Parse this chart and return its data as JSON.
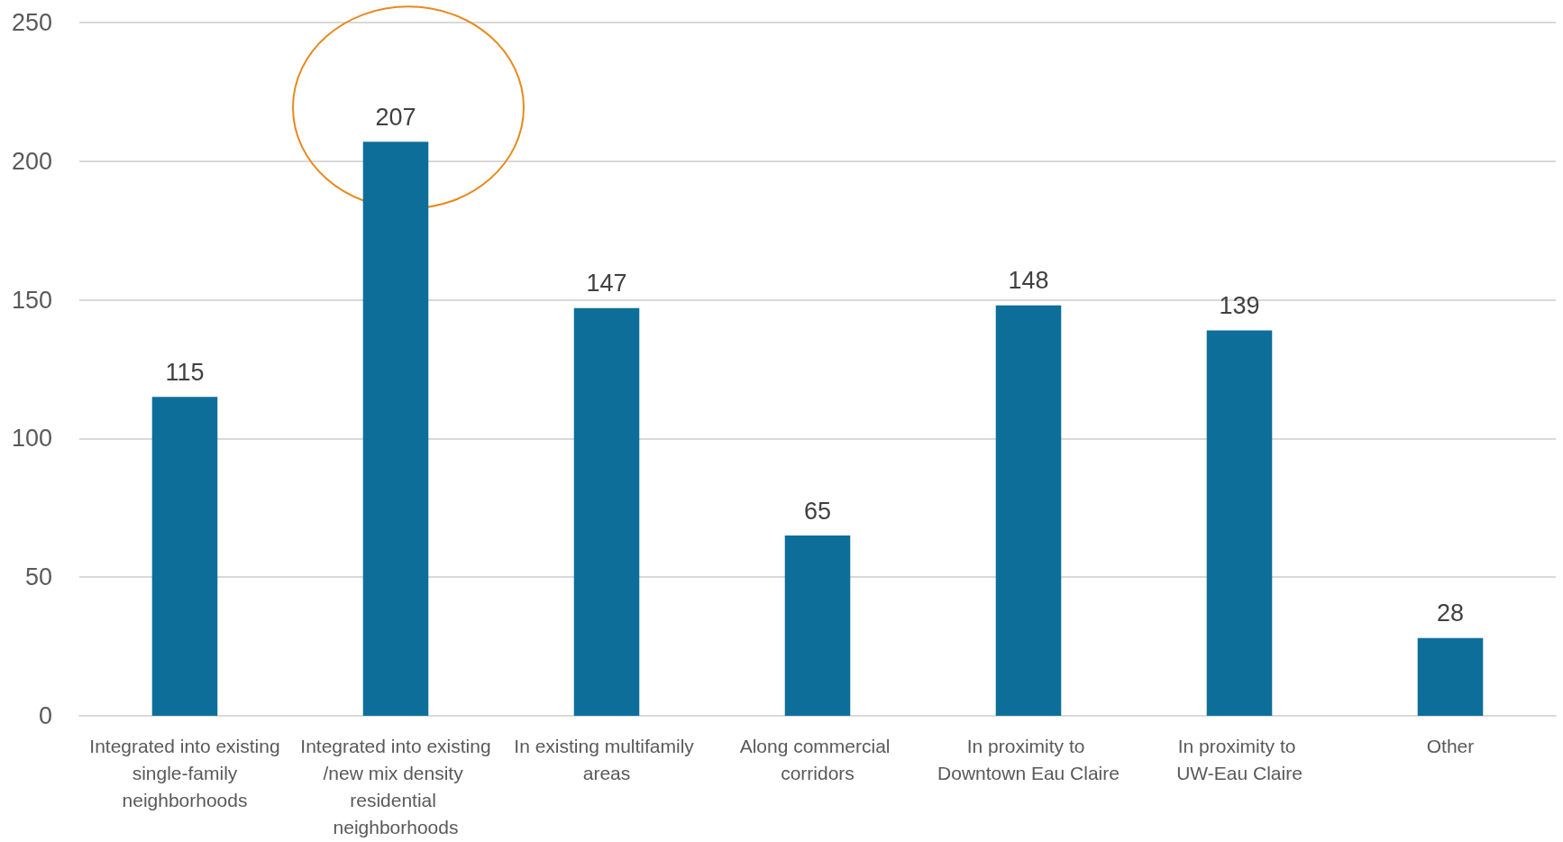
{
  "chart_data": {
    "type": "bar",
    "categories": [
      "Integrated into existing single-family neighborhoods",
      "Integrated into existing/new mix density residential neighborhoods",
      "In existing multifamily areas",
      "Along commercial corridors",
      "In proximity to Downtown Eau Claire",
      "In proximity to UW-Eau Claire",
      "Other"
    ],
    "values": [
      115,
      207,
      147,
      65,
      148,
      139,
      28
    ],
    "color": "#0e6e9a",
    "ylim": [
      0,
      250
    ],
    "yticks": [
      0,
      50,
      100,
      150,
      200,
      250
    ],
    "grid": "y",
    "data_labels": true
  }
}
